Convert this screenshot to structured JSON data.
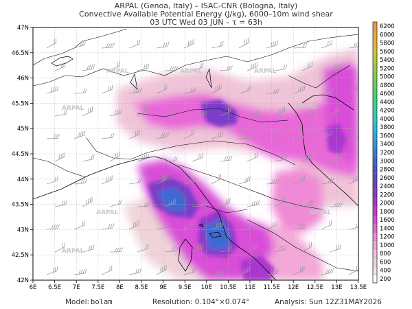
{
  "header": {
    "line1": "ARPAL (Genoa, Italy)  –  ISAC-CNR (Bologna, Italy)",
    "line2": "Convective Available Potential Energy (J/kg), 6000–10m wind shear",
    "line3": "03 UTC Wed 03 JUN   –   τ = 63h"
  },
  "map": {
    "lat_labels": [
      "47N",
      "46.5N",
      "46N",
      "45.5N",
      "45N",
      "44.5N",
      "44N",
      "43.5N",
      "43N",
      "42.5N",
      "42N"
    ],
    "lon_labels": [
      "6E",
      "6.5E",
      "7E",
      "7.5E",
      "8E",
      "8.5E",
      "9E",
      "9.5E",
      "10E",
      "10.5E",
      "11E",
      "11.5E",
      "12E",
      "12.5E",
      "13E",
      "13.5E"
    ],
    "lat_range": [
      42,
      47
    ],
    "lon_range": [
      6,
      13.5
    ],
    "watermark": "ARPAL"
  },
  "colorbar": {
    "levels": [
      200,
      400,
      600,
      800,
      1000,
      1200,
      1400,
      1600,
      1800,
      2000,
      2200,
      2400,
      2600,
      2800,
      3000,
      3200,
      3400,
      3600,
      3800,
      4000,
      4200,
      4400,
      4600,
      4800,
      5000,
      5200,
      5400,
      5600,
      5800,
      6000,
      6200
    ],
    "colors": [
      "#ffffff",
      "#f3e2e5",
      "#efd3d9",
      "#f0c4d8",
      "#f2a8d8",
      "#f08ad6",
      "#e868d8",
      "#d94ed8",
      "#c43ad4",
      "#aa37d0",
      "#9038cc",
      "#7a3ec8",
      "#6448c8",
      "#4f56cc",
      "#3e6ad2",
      "#357fd8",
      "#2f95de",
      "#2aabe2",
      "#27c0e0",
      "#28cfc8",
      "#2ed4a8",
      "#3ad48a",
      "#4ad470",
      "#60d45a",
      "#7ed24a",
      "#9cd03e",
      "#bccc36",
      "#d8c434",
      "#e8b636",
      "#ecaa3a",
      "#ee9e44"
    ]
  },
  "footer": {
    "model_label": "Model:",
    "model": "bolam",
    "resolution": "Resolution: 0.104°×0.074°",
    "analysis": "Analysis: Sun 12Z31MAY2026"
  }
}
